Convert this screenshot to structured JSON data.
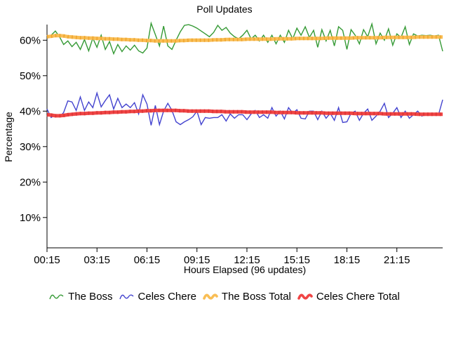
{
  "title": "Poll Updates",
  "axes": {
    "y_label": "Percentage",
    "x_label": "Hours Elapsed (96 updates)",
    "y_ticks": [
      "60%",
      "50%",
      "40%",
      "30%",
      "20%",
      "10%"
    ],
    "y_tick_values": [
      60,
      50,
      40,
      30,
      20,
      10
    ],
    "x_ticks": [
      "00:15",
      "03:15",
      "06:15",
      "09:15",
      "12:15",
      "15:15",
      "18:15",
      "21:15"
    ]
  },
  "chart_data": {
    "type": "line",
    "title": "Poll Updates",
    "xlabel": "Hours Elapsed (96 updates)",
    "ylabel": "Percentage",
    "x_tick_labels": [
      "00:15",
      "03:15",
      "06:15",
      "09:15",
      "12:15",
      "15:15",
      "18:15",
      "21:15"
    ],
    "y_tick_labels": [
      "60%",
      "50%",
      "40%",
      "30%",
      "20%",
      "10%"
    ],
    "ylim": [
      0,
      65
    ],
    "x_points": 96,
    "grid": false,
    "legend_position": "bottom",
    "series": [
      {
        "name": "The Boss",
        "color": "#359a35",
        "style": "thin",
        "values": [
          60.6,
          61.4,
          62.6,
          61.0,
          58.8,
          59.8,
          58.2,
          59.4,
          57.4,
          60.2,
          57.0,
          60.6,
          58.0,
          61.4,
          57.4,
          59.6,
          56.2,
          58.8,
          56.8,
          58.4,
          57.2,
          58.6,
          57.0,
          56.4,
          57.8,
          64.8,
          61.6,
          58.4,
          64.0,
          58.4,
          57.4,
          60.0,
          62.4,
          64.2,
          64.4,
          64.0,
          63.4,
          62.6,
          61.8,
          61.0,
          62.2,
          64.2,
          62.8,
          63.6,
          62.0,
          61.0,
          60.4,
          61.4,
          62.8,
          60.4,
          61.4,
          59.8,
          61.4,
          59.4,
          61.4,
          59.0,
          61.4,
          59.4,
          62.8,
          60.4,
          63.4,
          61.4,
          63.8,
          60.8,
          62.8,
          58.0,
          63.0,
          59.8,
          62.8,
          58.4,
          63.8,
          62.8,
          57.4,
          63.0,
          61.4,
          59.0,
          63.0,
          61.0,
          64.6,
          59.0,
          62.0,
          60.0,
          63.2,
          58.6,
          61.8,
          60.8,
          63.8,
          58.8,
          61.8,
          61.2,
          61.4,
          61.3,
          61.4,
          61.2,
          61.4,
          56.9
        ]
      },
      {
        "name": "Celes Chere",
        "color": "#4444cf",
        "style": "thin",
        "values": [
          40.6,
          38.2,
          39.0,
          38.4,
          39.6,
          42.9,
          42.6,
          40.2,
          44.0,
          40.2,
          42.6,
          41.0,
          45.1,
          41.2,
          43.0,
          44.6,
          40.6,
          43.6,
          41.0,
          42.0,
          41.0,
          42.4,
          39.2,
          44.6,
          42.0,
          36.0,
          41.6,
          36.2,
          40.0,
          42.2,
          40.2,
          37.0,
          36.2,
          37.0,
          37.6,
          38.4,
          40.0,
          36.2,
          38.2,
          38.0,
          38.2,
          38.2,
          39.0,
          37.2,
          39.2,
          38.0,
          39.0,
          39.0,
          37.6,
          39.2,
          40.2,
          38.2,
          39.0,
          38.0,
          41.0,
          38.6,
          40.0,
          37.8,
          41.0,
          39.4,
          40.4,
          38.0,
          37.8,
          40.0,
          40.0,
          37.6,
          40.0,
          38.0,
          39.4,
          37.4,
          41.0,
          36.8,
          37.0,
          39.4,
          40.0,
          37.4,
          39.4,
          40.6,
          37.4,
          38.6,
          40.0,
          42.2,
          38.2,
          39.4,
          41.0,
          38.2,
          40.0,
          38.0,
          39.0,
          40.0,
          38.6,
          39.2,
          38.8,
          39.4,
          39.0,
          43.2
        ]
      },
      {
        "name": "The Boss Total",
        "color": "#f9be55",
        "dash_color": "#efa42e",
        "style": "thick",
        "values": [
          61.0,
          61.1,
          61.3,
          61.3,
          61.2,
          61.0,
          60.9,
          60.8,
          60.7,
          60.7,
          60.6,
          60.6,
          60.5,
          60.5,
          60.4,
          60.4,
          60.3,
          60.3,
          60.2,
          60.2,
          60.1,
          60.1,
          60.0,
          60.0,
          59.9,
          59.9,
          59.8,
          59.8,
          59.8,
          59.8,
          59.8,
          59.8,
          59.9,
          59.9,
          60.0,
          60.0,
          60.0,
          60.0,
          60.0,
          60.0,
          60.1,
          60.1,
          60.1,
          60.2,
          60.2,
          60.2,
          60.2,
          60.2,
          60.3,
          60.3,
          60.3,
          60.3,
          60.3,
          60.3,
          60.3,
          60.4,
          60.4,
          60.4,
          60.4,
          60.4,
          60.5,
          60.5,
          60.5,
          60.5,
          60.5,
          60.5,
          60.5,
          60.6,
          60.6,
          60.6,
          60.6,
          60.6,
          60.6,
          60.6,
          60.7,
          60.7,
          60.7,
          60.7,
          60.7,
          60.7,
          60.7,
          60.8,
          60.8,
          60.8,
          60.8,
          60.8,
          60.8,
          60.8,
          60.8,
          60.9,
          60.9,
          60.9,
          60.9,
          60.9,
          60.9,
          60.9
        ]
      },
      {
        "name": "Celes Chere Total",
        "color": "#f04545",
        "dash_color": "#dc3535",
        "style": "thick",
        "values": [
          39.0,
          38.9,
          38.7,
          38.7,
          38.8,
          39.0,
          39.1,
          39.2,
          39.3,
          39.3,
          39.4,
          39.4,
          39.5,
          39.5,
          39.6,
          39.6,
          39.7,
          39.7,
          39.8,
          39.8,
          39.9,
          39.9,
          40.0,
          40.0,
          40.1,
          40.1,
          40.2,
          40.2,
          40.2,
          40.2,
          40.2,
          40.2,
          40.1,
          40.1,
          40.0,
          40.0,
          40.0,
          40.0,
          40.0,
          40.0,
          39.9,
          39.9,
          39.9,
          39.8,
          39.8,
          39.8,
          39.8,
          39.8,
          39.7,
          39.7,
          39.7,
          39.7,
          39.7,
          39.7,
          39.7,
          39.6,
          39.6,
          39.6,
          39.6,
          39.6,
          39.5,
          39.5,
          39.5,
          39.5,
          39.5,
          39.5,
          39.5,
          39.4,
          39.4,
          39.4,
          39.4,
          39.4,
          39.4,
          39.4,
          39.3,
          39.3,
          39.3,
          39.3,
          39.3,
          39.3,
          39.3,
          39.2,
          39.2,
          39.2,
          39.2,
          39.2,
          39.2,
          39.2,
          39.2,
          39.1,
          39.1,
          39.1,
          39.1,
          39.1,
          39.1,
          39.1
        ]
      }
    ]
  }
}
